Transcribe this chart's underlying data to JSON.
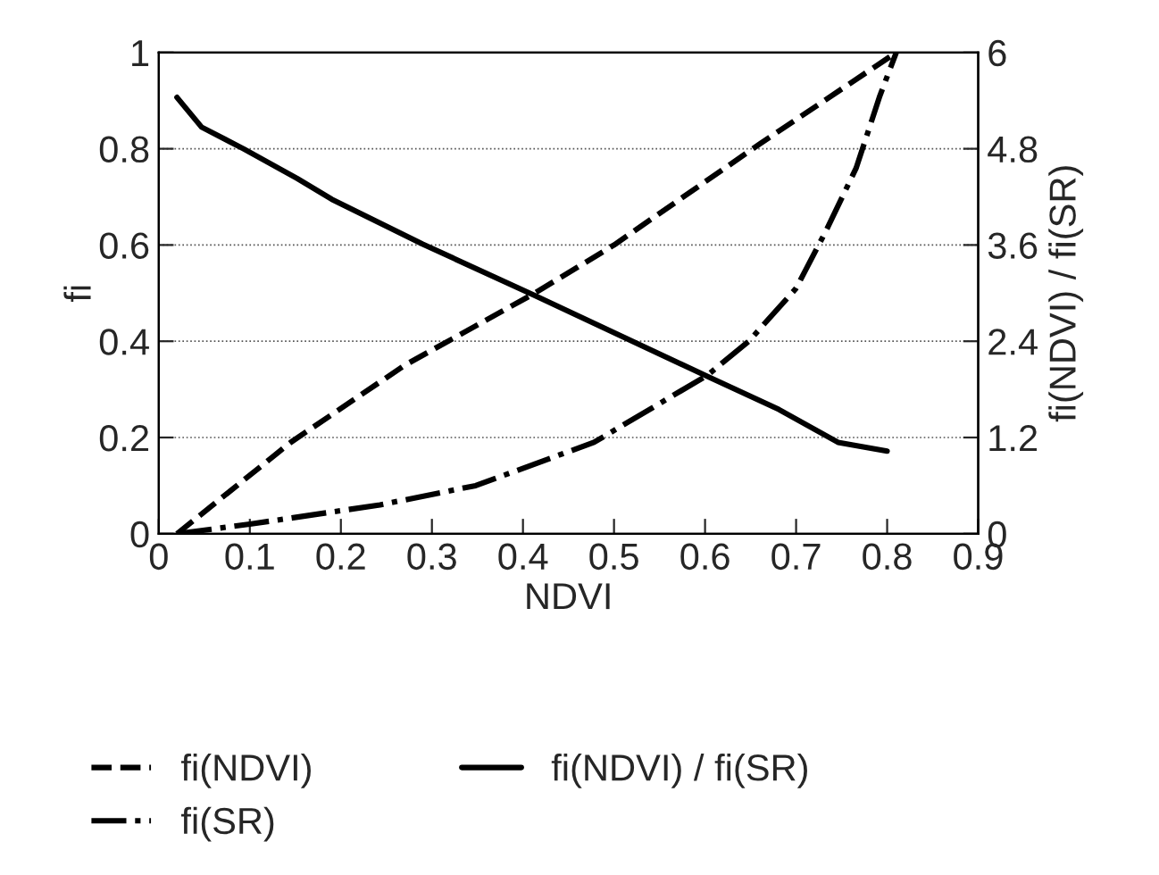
{
  "chart_data": {
    "type": "line",
    "xlabel": "NDVI",
    "ylabel": "fi",
    "y2label": "fi(NDVI) / fi(SR)",
    "xlim": [
      0,
      0.9
    ],
    "xticks": [
      0,
      0.1,
      0.2,
      0.3,
      0.4,
      0.5,
      0.6,
      0.7,
      0.8,
      0.9
    ],
    "ylim": [
      0,
      1
    ],
    "yticks": [
      0,
      0.2,
      0.4,
      0.6,
      0.8,
      1
    ],
    "y2lim": [
      0,
      6
    ],
    "y2ticks": [
      0,
      1.2,
      2.4,
      3.6,
      4.8,
      6
    ],
    "grid": "y",
    "legend": "bottom",
    "marker": "none",
    "series": [
      {
        "name": "fi(NDVI)",
        "color": "#000000",
        "line_style": "dashed",
        "x": [
          0.02,
          0.145,
          0.27,
          0.413,
          0.5,
          0.66,
          0.81
        ],
        "values": [
          0,
          0.19,
          0.35,
          0.5,
          0.6,
          0.81,
          1.0
        ]
      },
      {
        "name": "fi(SR)",
        "color": "#000000",
        "line_style": "dashdot",
        "x": [
          0.02,
          0.1,
          0.243,
          0.348,
          0.478,
          0.603,
          0.648,
          0.7,
          0.733,
          0.766,
          0.792,
          0.81
        ],
        "values": [
          0,
          0.02,
          0.06,
          0.1,
          0.19,
          0.33,
          0.4,
          0.51,
          0.63,
          0.76,
          0.91,
          1.0
        ]
      },
      {
        "name": "fi(NDVI) / fi(SR)",
        "color": "#000000",
        "line_style": "solid",
        "axis": "y2",
        "x": [
          0.02,
          0.047,
          0.093,
          0.152,
          0.19,
          0.29,
          0.413,
          0.603,
          0.681,
          0.746,
          0.8
        ],
        "values": [
          5.44,
          5.07,
          4.8,
          4.43,
          4.17,
          3.61,
          2.97,
          1.96,
          1.55,
          1.14,
          1.03
        ]
      }
    ]
  }
}
